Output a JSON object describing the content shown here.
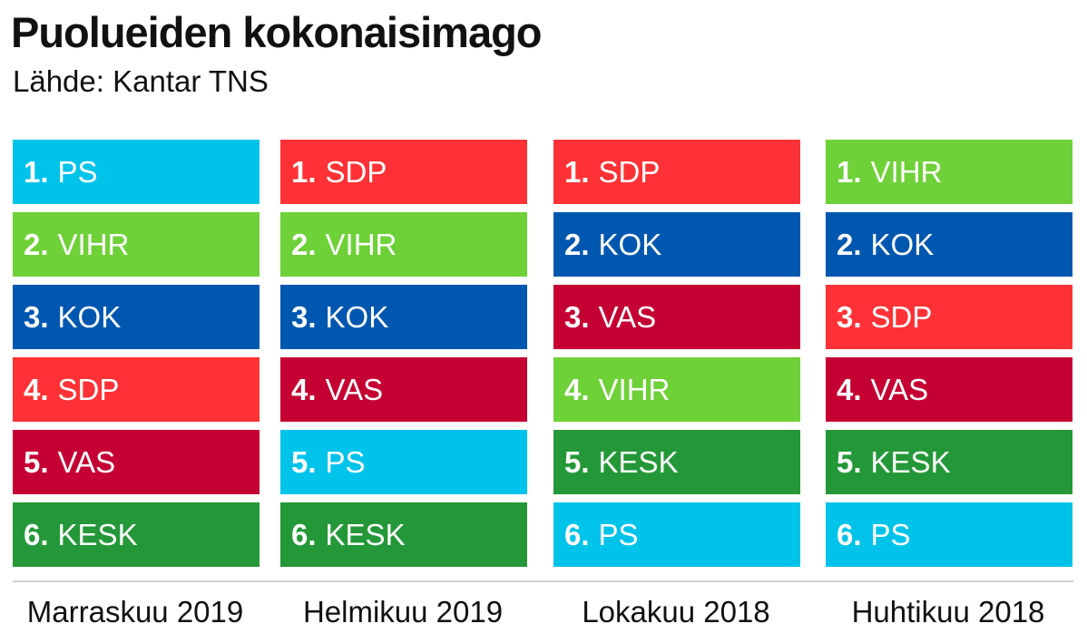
{
  "chart_data": {
    "type": "table",
    "title": "Puolueiden kokonaisimago",
    "subtitle": "Lähde: Kantar TNS",
    "colors": {
      "PS": "#00c3ea",
      "VIHR": "#6dd137",
      "KOK": "#0057b0",
      "SDP": "#fe3236",
      "VAS": "#c50033",
      "KESK": "#249838"
    },
    "columns": [
      {
        "period": "Marraskuu 2019",
        "rankings": [
          {
            "rank": "1.",
            "party": "PS"
          },
          {
            "rank": "2.",
            "party": "VIHR"
          },
          {
            "rank": "3.",
            "party": "KOK"
          },
          {
            "rank": "4.",
            "party": "SDP"
          },
          {
            "rank": "5.",
            "party": "VAS"
          },
          {
            "rank": "6.",
            "party": "KESK"
          }
        ]
      },
      {
        "period": "Helmikuu 2019",
        "rankings": [
          {
            "rank": "1.",
            "party": "SDP"
          },
          {
            "rank": "2.",
            "party": "VIHR"
          },
          {
            "rank": "3.",
            "party": "KOK"
          },
          {
            "rank": "4.",
            "party": "VAS"
          },
          {
            "rank": "5.",
            "party": "PS"
          },
          {
            "rank": "6.",
            "party": "KESK"
          }
        ]
      },
      {
        "period": "Lokakuu 2018",
        "rankings": [
          {
            "rank": "1.",
            "party": "SDP"
          },
          {
            "rank": "2.",
            "party": "KOK"
          },
          {
            "rank": "3.",
            "party": "VAS"
          },
          {
            "rank": "4.",
            "party": "VIHR"
          },
          {
            "rank": "5.",
            "party": "KESK"
          },
          {
            "rank": "6.",
            "party": "PS"
          }
        ]
      },
      {
        "period": "Huhtikuu 2018",
        "rankings": [
          {
            "rank": "1.",
            "party": "VIHR"
          },
          {
            "rank": "2.",
            "party": "KOK"
          },
          {
            "rank": "3.",
            "party": "SDP"
          },
          {
            "rank": "4.",
            "party": "VAS"
          },
          {
            "rank": "5.",
            "party": "KESK"
          },
          {
            "rank": "6.",
            "party": "PS"
          }
        ]
      }
    ]
  }
}
